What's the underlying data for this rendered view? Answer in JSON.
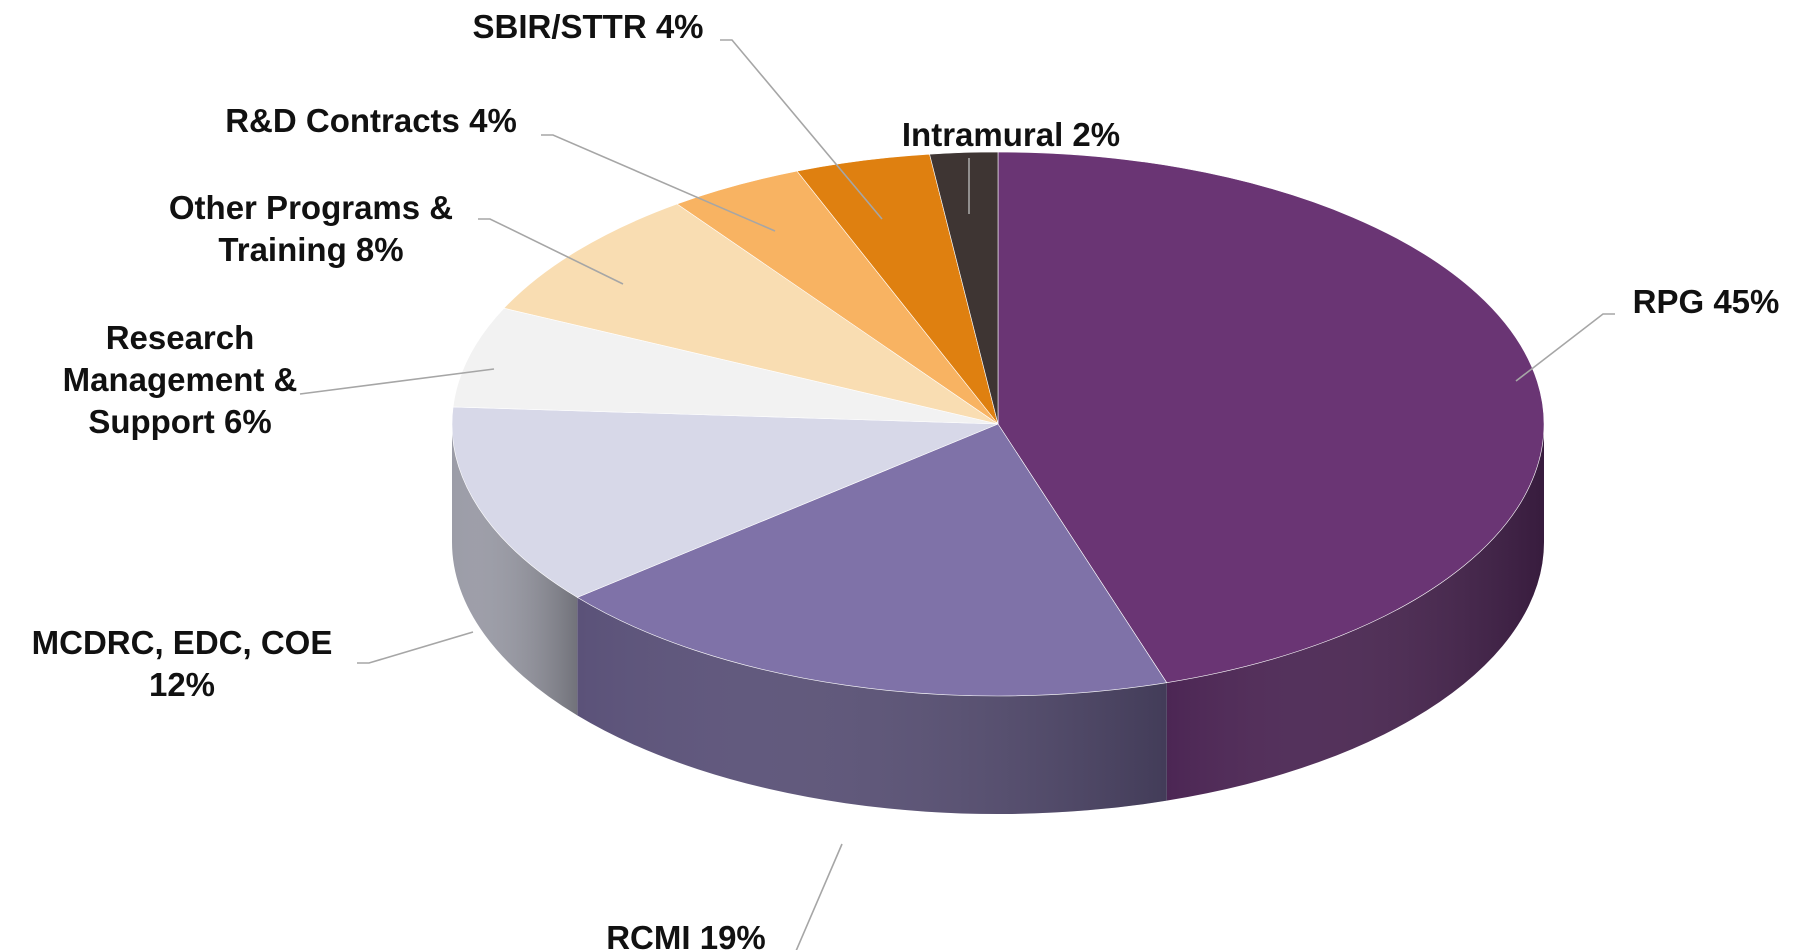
{
  "chart_data": {
    "type": "pie",
    "three_d": true,
    "categories": [
      "RPG",
      "RCMI",
      "MCDRC, EDC, COE",
      "Research Management & Support",
      "Other Programs & Training",
      "R&D Contracts",
      "SBIR/STTR",
      "Intramural"
    ],
    "values": [
      45,
      19,
      12,
      6,
      8,
      4,
      4,
      2
    ],
    "value_labels": [
      "45%",
      "19%",
      "12%",
      "6%",
      "8%",
      "4%",
      "4%",
      "2%"
    ],
    "colors": [
      "#6a3574",
      "#7f72a8",
      "#d7d8e8",
      "#f2f2f2",
      "#f9ddb2",
      "#f8b362",
      "#df8010",
      "#3e3533"
    ]
  }
}
